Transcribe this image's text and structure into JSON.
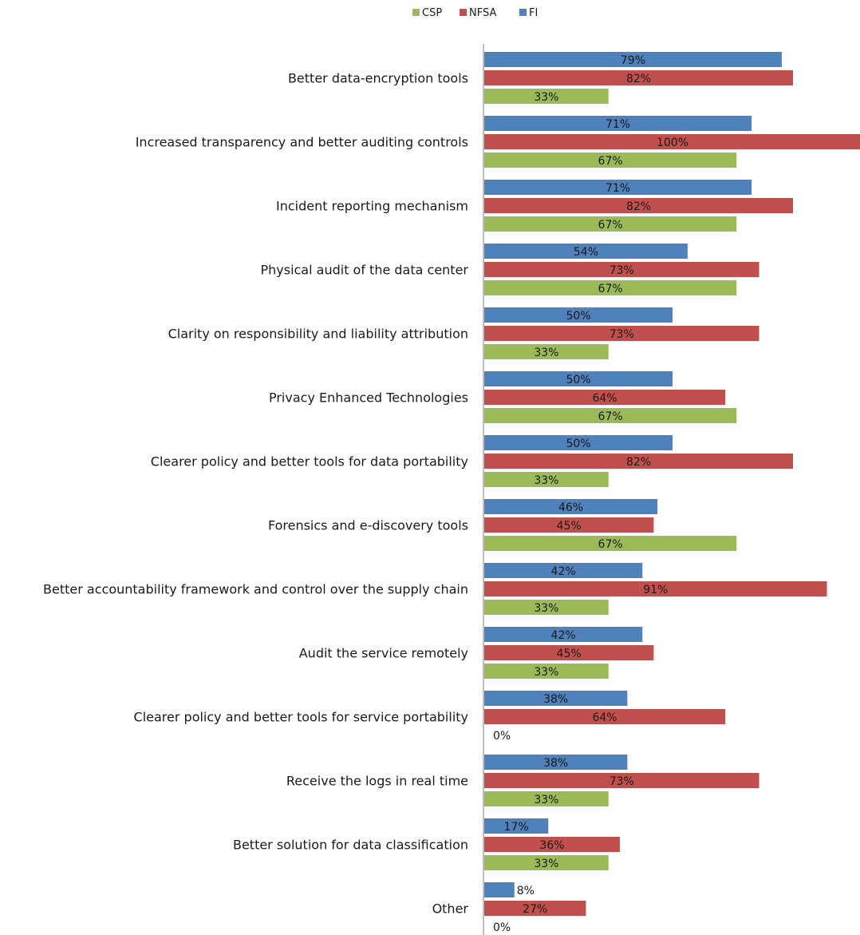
{
  "chart_data": {
    "type": "bar",
    "orientation": "horizontal",
    "categories": [
      "Better data-encryption tools",
      "Increased transparency and better auditing controls",
      "Incident reporting mechanism",
      "Physical audit of the data center",
      "Clarity on responsibility and liability attribution",
      "Privacy Enhanced Technologies",
      "Clearer policy and better tools for data portability",
      "Forensics and e-discovery tools",
      "Better accountability framework and control over the supply chain",
      "Audit the service remotely",
      "Clearer policy and better tools for service portability",
      "Receive the logs in real time",
      "Better solution for data classification",
      "Other"
    ],
    "series": [
      {
        "name": "FI",
        "color": "#4f81bd",
        "values": [
          79,
          71,
          71,
          54,
          50,
          50,
          50,
          46,
          42,
          42,
          38,
          38,
          17,
          8
        ],
        "labels": [
          "79%",
          "71%",
          "71%",
          "54%",
          "50%",
          "50%",
          "50%",
          "46%",
          "42%",
          "42%",
          "38%",
          "38%",
          "17%",
          "8%"
        ]
      },
      {
        "name": "NFSA",
        "color": "#c0504d",
        "values": [
          82,
          100,
          82,
          73,
          73,
          64,
          82,
          45,
          91,
          45,
          64,
          73,
          36,
          27
        ],
        "labels": [
          "82%",
          "100%",
          "82%",
          "73%",
          "73%",
          "64%",
          "82%",
          "45%",
          "91%",
          "45%",
          "64%",
          "73%",
          "36%",
          "27%"
        ]
      },
      {
        "name": "CSP",
        "color": "#9bbb59",
        "values": [
          33,
          67,
          67,
          67,
          33,
          67,
          33,
          67,
          33,
          33,
          0,
          33,
          33,
          0
        ],
        "labels": [
          "33%",
          "67%",
          "67%",
          "67%",
          "33%",
          "67%",
          "33%",
          "67%",
          "33%",
          "33%",
          "0%",
          "33%",
          "33%",
          "0%"
        ]
      }
    ],
    "legend": {
      "position": "top",
      "entries": [
        {
          "name": "CSP",
          "color": "#9bbb59"
        },
        {
          "name": "NFSA",
          "color": "#c0504d"
        },
        {
          "name": "FI",
          "color": "#4f81bd"
        }
      ]
    },
    "xlim": [
      0,
      100
    ],
    "axis_color": "#7f7f7f",
    "grid": false
  }
}
